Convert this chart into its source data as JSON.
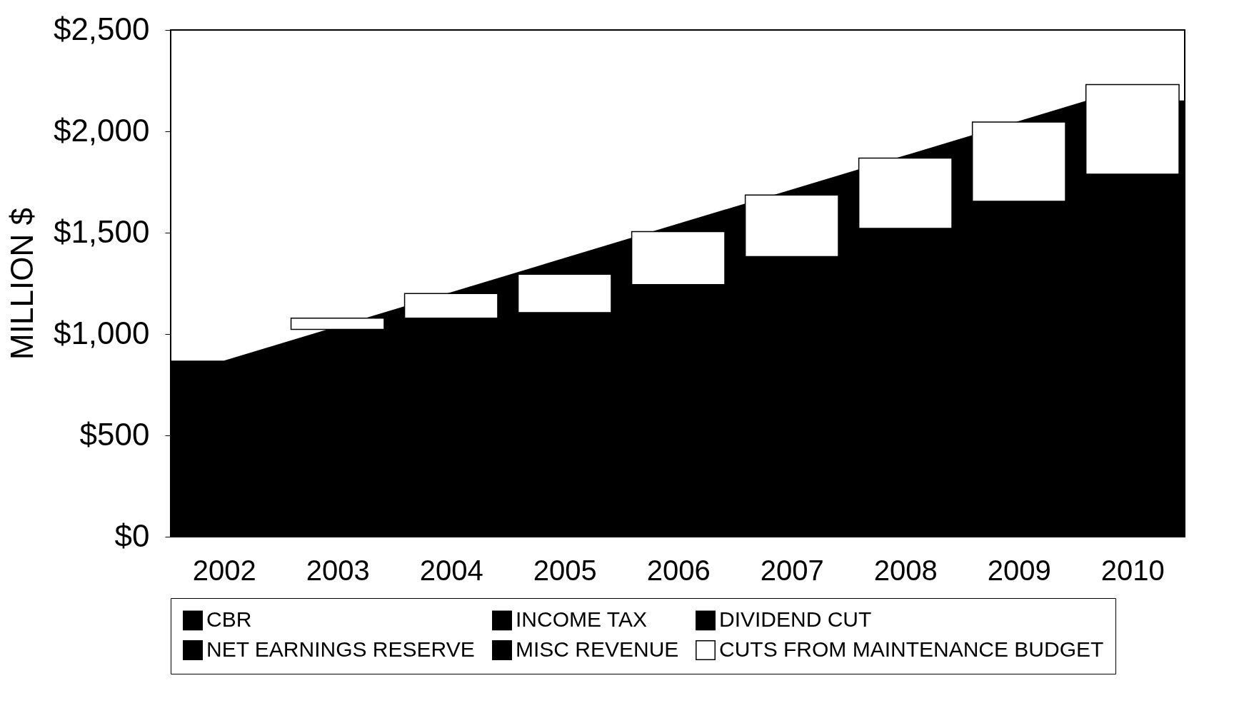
{
  "chart_data": {
    "type": "bar",
    "ylabel": "MILLION $",
    "x": [
      2003,
      2004,
      2005,
      2006,
      2007,
      2008,
      2009,
      2010
    ],
    "xlim": [
      2001.53,
      2010.46
    ],
    "xticks": [
      2002,
      2003,
      2004,
      2005,
      2006,
      2007,
      2008,
      2009,
      2010
    ],
    "ylim": [
      0,
      2500
    ],
    "yticks": [
      {
        "value": 0,
        "label": "$0"
      },
      {
        "value": 500,
        "label": "$500"
      },
      {
        "value": 1000,
        "label": "$1,000"
      },
      {
        "value": 1500,
        "label": "$1,500"
      },
      {
        "value": 2000,
        "label": "$2,000"
      },
      {
        "value": 2500,
        "label": "$2,500"
      }
    ],
    "grid": false,
    "legend": "bottom",
    "series": [
      {
        "type": "area",
        "color": "#000000",
        "x": [
          2001.53,
          2002,
          2009.6,
          2010.46
        ],
        "values": [
          869,
          869,
          2152,
          2152
        ]
      },
      {
        "name": "CBR",
        "color": "#000000",
        "values": [
          null,
          null,
          null,
          null,
          null,
          null,
          null,
          null
        ]
      },
      {
        "name": "INCOME TAX",
        "color": "#000000",
        "values": [
          null,
          null,
          null,
          null,
          null,
          null,
          null,
          null
        ]
      },
      {
        "name": "DIVIDEND CUT",
        "color": "#000000",
        "values": [
          null,
          null,
          null,
          null,
          null,
          null,
          null,
          null
        ]
      },
      {
        "name": "NET EARNINGS RESERVE",
        "color": "#000000",
        "values": [
          null,
          null,
          null,
          null,
          null,
          null,
          null,
          null
        ]
      },
      {
        "name": "MISC REVENUE",
        "color": "#000000",
        "values": [
          null,
          null,
          null,
          null,
          null,
          null,
          null,
          null
        ]
      },
      {
        "name": "CUTS FROM MAINTENANCE BUDGET",
        "color": "#ffffff",
        "base": [
          1023,
          1078,
          1106,
          1244,
          1382,
          1521,
          1655,
          1789
        ],
        "values": [
          55,
          122,
          189,
          261,
          304,
          347,
          391,
          442
        ]
      }
    ]
  }
}
